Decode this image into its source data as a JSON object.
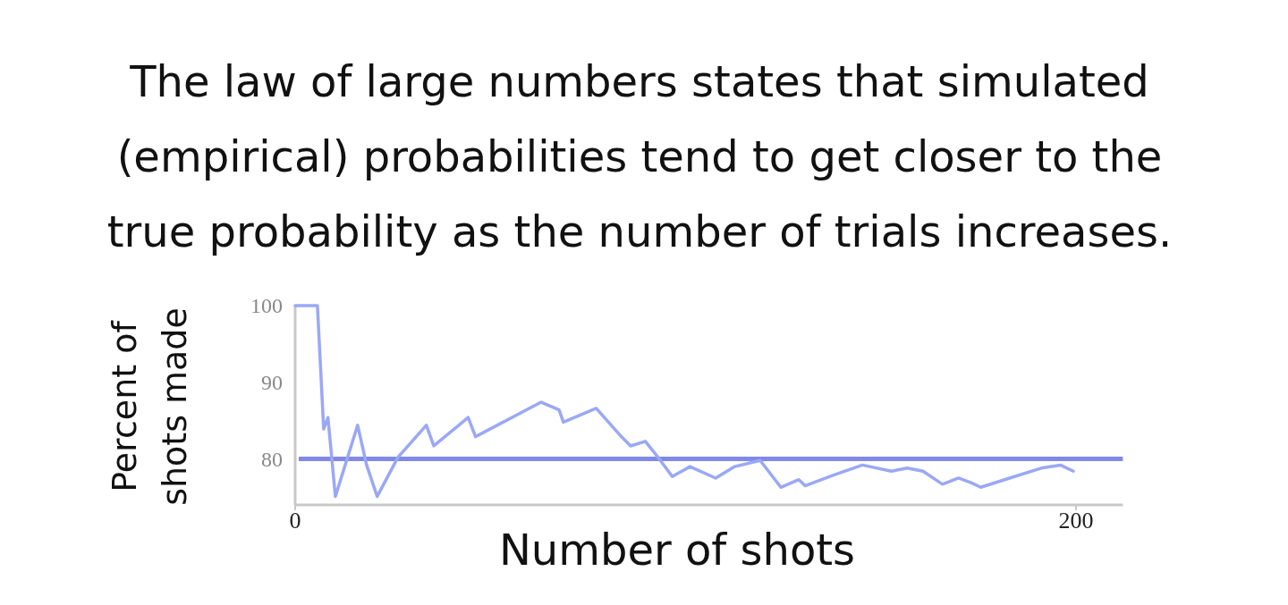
{
  "chart_data": {
    "type": "line",
    "title": "The law of large numbers states that simulated (empirical) probabilities tend to get closer to the true probability as the number of trials increases.",
    "xlabel": "Number of shots",
    "ylabel": "Percent of shots made",
    "xlim": [
      0,
      212
    ],
    "ylim": [
      74,
      100
    ],
    "xticks": [
      0,
      200
    ],
    "yticks": [
      80,
      90,
      100
    ],
    "grid": false,
    "marker": "none",
    "line_style": "solid",
    "ref_lines": [
      {
        "axis": "y",
        "value": 80,
        "color": "#8088e8"
      }
    ],
    "series": [
      {
        "color": "#9aa8f5",
        "x": [
          0,
          5.7,
          7.3,
          8.4,
          10.3,
          16,
          18.3,
          21,
          26.3,
          33.6,
          35.5,
          44.3,
          46.2,
          63,
          67.6,
          68.7,
          77.1,
          83.2,
          85.9,
          89.7,
          93.1,
          96.6,
          101.1,
          107.7,
          112.6,
          119.1,
          124.4,
          129,
          130.6,
          137.9,
          145.3,
          152.7,
          156.8,
          160.8,
          165.8,
          169.9,
          173.1,
          175.6,
          183,
          191.1,
          196,
          199.3
        ],
        "values": [
          100,
          100,
          83.9,
          85.4,
          75.1,
          84.4,
          79.2,
          75.1,
          80.2,
          84.4,
          81.7,
          85.4,
          82.9,
          87.4,
          86.4,
          84.8,
          86.6,
          83.1,
          81.7,
          82.3,
          80.1,
          77.7,
          79,
          77.5,
          79,
          79.8,
          76.3,
          77.3,
          76.5,
          77.9,
          79.2,
          78.4,
          78.8,
          78.4,
          76.7,
          77.5,
          76.9,
          76.3,
          77.5,
          78.8,
          79.2,
          78.4
        ]
      }
    ]
  }
}
